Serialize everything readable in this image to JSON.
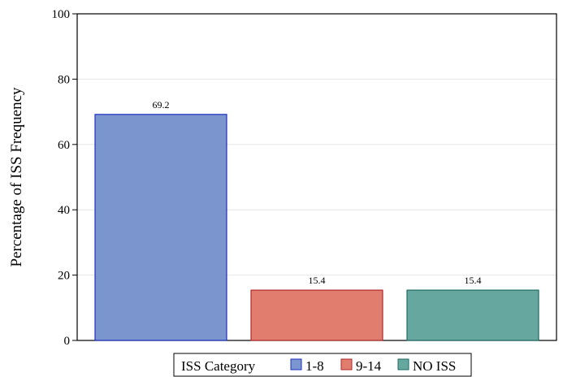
{
  "chart_data": {
    "type": "bar",
    "categories": [
      "1-8",
      "9-14",
      "NO ISS"
    ],
    "values": [
      69.2,
      15.4,
      15.4
    ],
    "value_labels": [
      "69.2",
      "15.4",
      "15.4"
    ],
    "colors": [
      "#7b96cf",
      "#e07d6e",
      "#66a8a0"
    ],
    "edge_colors": [
      "#1f2fbf",
      "#b0282a",
      "#1f6b62"
    ],
    "title": "",
    "xlabel": "",
    "ylabel": "Percentage of ISS Frequency",
    "ylim": [
      0,
      100
    ],
    "yticks": [
      0,
      20,
      40,
      60,
      80,
      100
    ],
    "ytick_labels": [
      "0",
      "20",
      "40",
      "60",
      "80",
      "100"
    ],
    "grid": true,
    "legend": {
      "title": "ISS Category",
      "placement": "bottom",
      "entries": [
        "1-8",
        "9-14",
        "NO ISS"
      ]
    }
  }
}
